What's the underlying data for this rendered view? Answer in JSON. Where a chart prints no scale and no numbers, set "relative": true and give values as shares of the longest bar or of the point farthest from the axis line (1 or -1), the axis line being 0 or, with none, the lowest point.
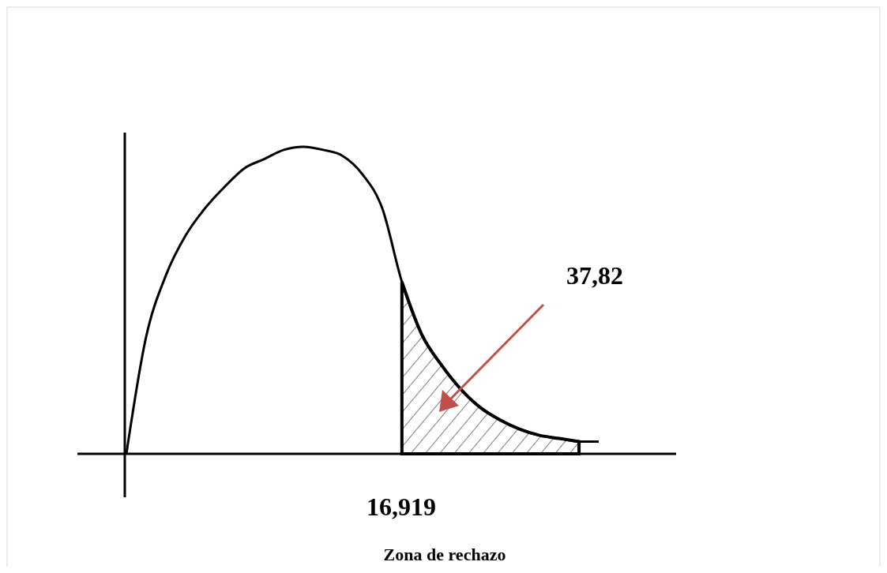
{
  "chart_data": {
    "type": "line",
    "relative": true,
    "categories": [
      null,
      null,
      null,
      null,
      null,
      null,
      null,
      null,
      null,
      null,
      null,
      null,
      null,
      null,
      null,
      null,
      null,
      null,
      null,
      null,
      null,
      null,
      null,
      null,
      null
    ],
    "series": [
      {
        "color": "#000000",
        "values": [
          0,
          0.38,
          0.58,
          0.71,
          0.8,
          0.87,
          0.93,
          0.96,
          0.99,
          1,
          0.99,
          0.97,
          0.91,
          0.8,
          0.56,
          0.39,
          0.29,
          0.21,
          0.15,
          0.11,
          0.08,
          0.06,
          0.05,
          0.04,
          0.04
        ]
      },
      {
        "type": "area",
        "color": "#000000",
        "values": [
          null,
          null,
          null,
          null,
          null,
          null,
          null,
          null,
          null,
          null,
          null,
          null,
          null,
          null,
          0.56,
          0.39,
          0.29,
          0.21,
          0.15,
          0.11,
          0.08,
          0.06,
          0.05,
          0.04,
          null
        ]
      }
    ],
    "annotations": [
      "16,919",
      "37,82",
      "Zona de rechazo"
    ]
  }
}
